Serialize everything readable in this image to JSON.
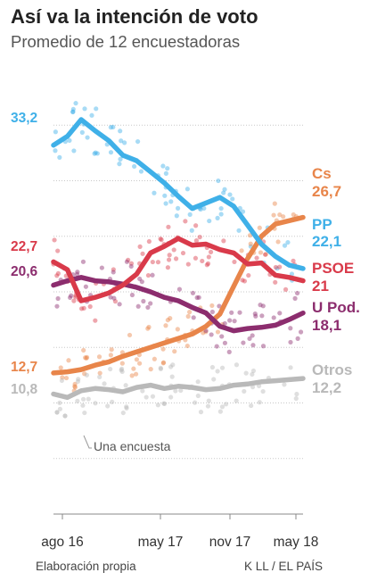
{
  "title": "Así va la intención de voto",
  "subtitle": "Promedio de 12 encuestadoras",
  "source": "Elaboración propia",
  "credit": "K LL / EL PAÍS",
  "annotation": "Una encuesta",
  "chart_data": {
    "type": "line",
    "x_ticks": [
      "ago 16",
      "may 17",
      "nov 17",
      "may 18"
    ],
    "ylim": [
      0,
      40
    ],
    "grid": true,
    "series": [
      {
        "name": "PP",
        "color": "#3fb0e8",
        "start_label": "33,2",
        "end_label": "22,1",
        "values": [
          33.2,
          34.0,
          35.5,
          34.5,
          33.6,
          32.3,
          31.8,
          30.8,
          29.8,
          28.6,
          27.5,
          28.0,
          28.5,
          27.7,
          26.0,
          24.3,
          23.2,
          22.4,
          22.1
        ]
      },
      {
        "name": "Cs",
        "color": "#e8854a",
        "start_label": "12,7",
        "end_label": "26,7",
        "values": [
          12.7,
          12.8,
          13.0,
          13.4,
          13.7,
          14.2,
          14.6,
          15.0,
          15.4,
          15.8,
          16.2,
          16.9,
          18.0,
          20.5,
          23.0,
          25.0,
          26.1,
          26.4,
          26.7
        ]
      },
      {
        "name": "PSOE",
        "color": "#d93a4a",
        "start_label": "22,7",
        "end_label": "21",
        "values": [
          22.7,
          22.0,
          19.2,
          19.5,
          19.9,
          20.6,
          21.6,
          23.5,
          24.1,
          24.8,
          24.2,
          24.3,
          23.8,
          23.5,
          22.5,
          22.6,
          21.5,
          21.3,
          21.0
        ]
      },
      {
        "name": "U Pod.",
        "color": "#8c2d6e",
        "start_label": "20,6",
        "end_label": "18,1",
        "values": [
          20.6,
          21.0,
          21.3,
          21.0,
          20.9,
          20.7,
          20.4,
          20.0,
          19.5,
          19.2,
          18.6,
          18.1,
          16.9,
          16.5,
          16.7,
          16.8,
          17.0,
          17.5,
          18.1
        ]
      },
      {
        "name": "Otros",
        "color": "#b9b9b9",
        "start_label": "10,8",
        "end_label": "12,2",
        "values": [
          10.8,
          10.5,
          11.1,
          11.3,
          11.2,
          11.0,
          11.4,
          11.6,
          11.3,
          11.5,
          11.4,
          11.2,
          11.3,
          11.6,
          11.7,
          11.9,
          12.0,
          12.1,
          12.2
        ]
      }
    ]
  }
}
